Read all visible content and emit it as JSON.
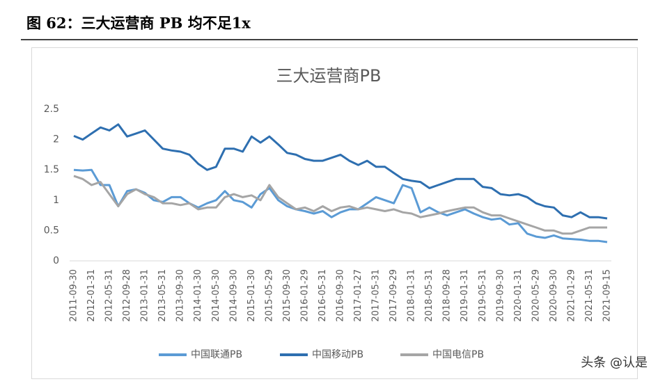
{
  "header": {
    "title": "图 62：三大运营商 PB 均不足1x"
  },
  "watermark": "头条 @认是",
  "chart_data": {
    "type": "line",
    "title": "三大运营商PB",
    "categories": [
      "2011-09-30",
      null,
      "2012-01-31",
      null,
      "2012-05-31",
      null,
      "2012-09-28",
      null,
      "2013-01-31",
      null,
      "2013-05-31",
      null,
      "2013-09-30",
      null,
      "2014-01-30",
      null,
      "2014-05-30",
      null,
      "2014-09-30",
      null,
      "2015-01-30",
      null,
      "2015-05-29",
      null,
      "2015-09-30",
      null,
      "2016-01-29",
      null,
      "2016-05-31",
      null,
      "2016-09-30",
      null,
      "2017-01-27",
      null,
      "2017-05-31",
      null,
      "2017-09-29",
      null,
      "2018-01-31",
      null,
      "2018-05-31",
      null,
      "2018-09-28",
      null,
      "2019-01-31",
      null,
      "2019-05-31",
      null,
      "2019-09-30",
      null,
      "2020-01-31",
      null,
      "2020-05-29",
      null,
      "2020-09-30",
      null,
      "2021-01-29",
      null,
      "2021-05-31",
      null,
      "2021-09-15"
    ],
    "series": [
      {
        "name": "中国联通PB",
        "color": "#5b9bd5",
        "values": [
          1.5,
          1.49,
          1.5,
          1.25,
          1.25,
          0.9,
          1.15,
          1.18,
          1.12,
          1.0,
          0.97,
          1.05,
          1.05,
          0.95,
          0.88,
          0.95,
          1.0,
          1.15,
          1.0,
          0.97,
          0.88,
          1.1,
          1.2,
          1.0,
          0.9,
          0.85,
          0.82,
          0.78,
          0.82,
          0.72,
          0.8,
          0.85,
          0.85,
          0.95,
          1.05,
          1.0,
          0.95,
          1.25,
          1.2,
          0.8,
          0.88,
          0.8,
          0.75,
          0.8,
          0.85,
          0.78,
          0.72,
          0.68,
          0.7,
          0.6,
          0.62,
          0.45,
          0.4,
          0.38,
          0.42,
          0.37,
          0.36,
          0.35,
          0.33,
          0.33,
          0.31
        ]
      },
      {
        "name": "中国移动PB",
        "color": "#2e6fb0",
        "values": [
          2.06,
          2.0,
          2.1,
          2.2,
          2.15,
          2.25,
          2.05,
          2.1,
          2.15,
          2.0,
          1.85,
          1.82,
          1.8,
          1.75,
          1.6,
          1.5,
          1.55,
          1.85,
          1.85,
          1.8,
          2.05,
          1.95,
          2.05,
          1.92,
          1.78,
          1.75,
          1.68,
          1.65,
          1.65,
          1.7,
          1.75,
          1.65,
          1.58,
          1.65,
          1.55,
          1.55,
          1.45,
          1.35,
          1.32,
          1.3,
          1.2,
          1.25,
          1.3,
          1.35,
          1.35,
          1.35,
          1.22,
          1.2,
          1.1,
          1.08,
          1.1,
          1.05,
          0.95,
          0.9,
          0.88,
          0.75,
          0.72,
          0.8,
          0.72,
          0.72,
          0.7
        ]
      },
      {
        "name": "中国电信PB",
        "color": "#a5a5a5",
        "values": [
          1.4,
          1.35,
          1.25,
          1.3,
          1.1,
          0.9,
          1.1,
          1.18,
          1.1,
          1.05,
          0.95,
          0.95,
          0.92,
          0.95,
          0.85,
          0.88,
          0.88,
          1.05,
          1.1,
          1.05,
          1.08,
          1.0,
          1.25,
          1.05,
          0.95,
          0.85,
          0.88,
          0.82,
          0.9,
          0.82,
          0.88,
          0.9,
          0.85,
          0.88,
          0.85,
          0.82,
          0.85,
          0.8,
          0.78,
          0.72,
          0.75,
          0.78,
          0.82,
          0.85,
          0.88,
          0.88,
          0.8,
          0.75,
          0.75,
          0.7,
          0.65,
          0.6,
          0.55,
          0.5,
          0.5,
          0.45,
          0.45,
          0.5,
          0.55,
          0.55,
          0.55
        ]
      }
    ],
    "ylim": [
      0,
      2.5
    ],
    "yticks": [
      0,
      0.5,
      1,
      1.5,
      2,
      2.5
    ],
    "grid": false,
    "legend": "bottom"
  }
}
